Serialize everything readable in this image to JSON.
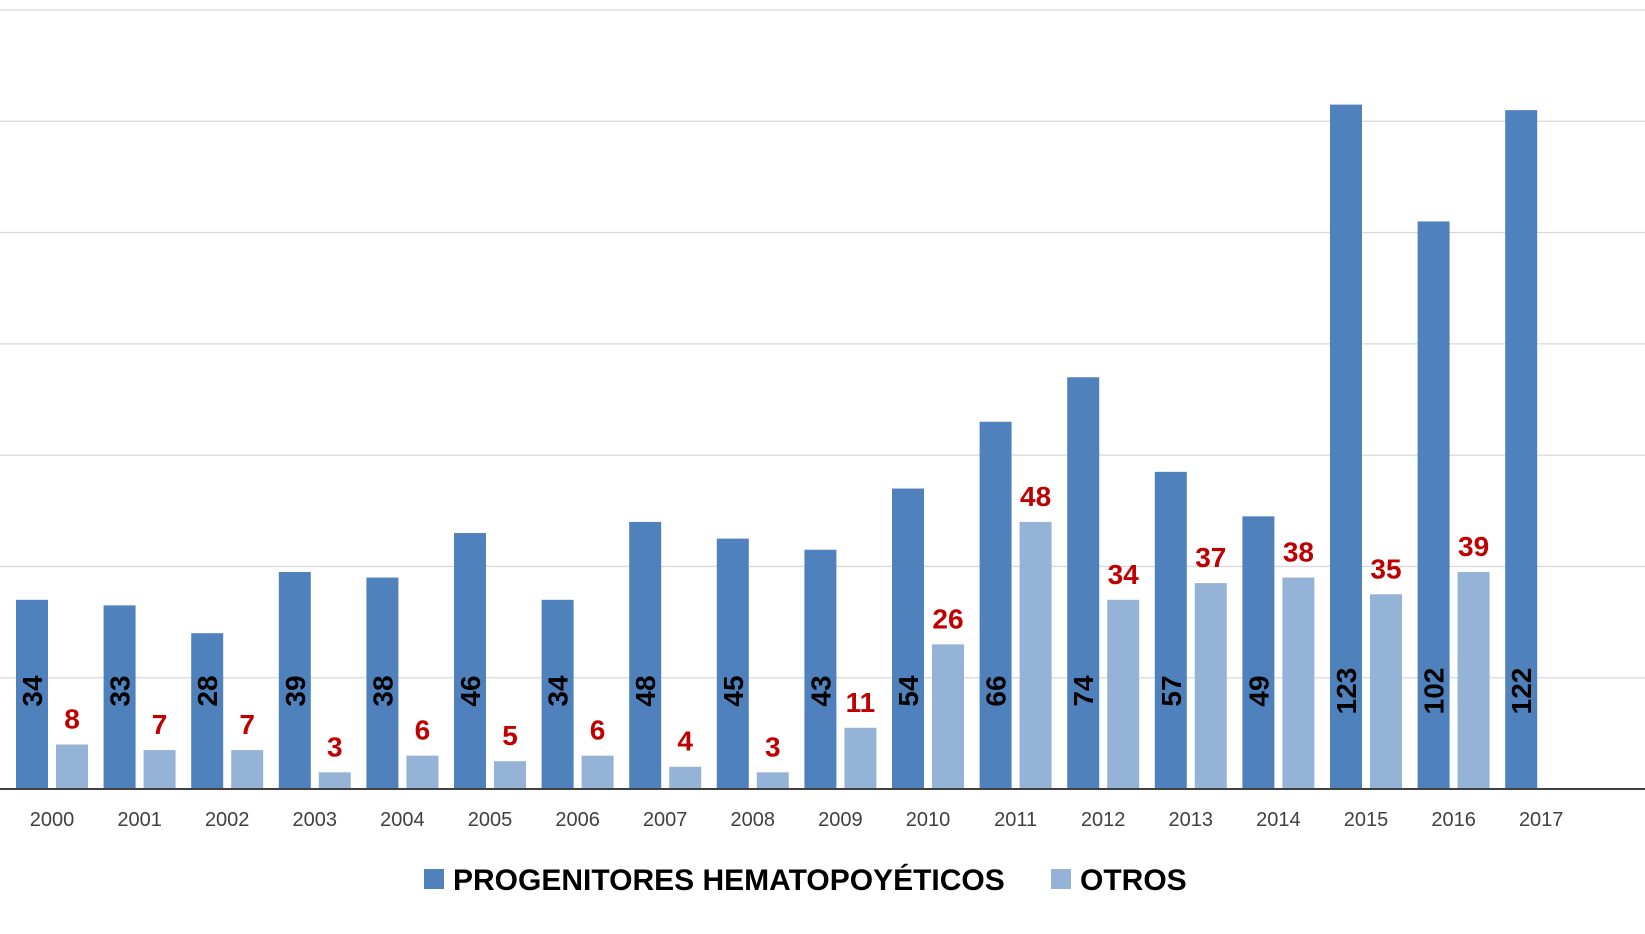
{
  "chart_data": {
    "type": "bar",
    "title": "",
    "xlabel": "",
    "ylabel": "",
    "categories": [
      "2000",
      "2001",
      "2002",
      "2003",
      "2004",
      "2005",
      "2006",
      "2007",
      "2008",
      "2009",
      "2010",
      "2011",
      "2012",
      "2013",
      "2014",
      "2015",
      "2016",
      "2017"
    ],
    "series": [
      {
        "name": "PROGENITORES HEMATOPOYÉTICOS",
        "values": [
          34,
          33,
          28,
          39,
          38,
          46,
          34,
          48,
          45,
          43,
          54,
          66,
          74,
          57,
          49,
          123,
          102,
          122
        ],
        "color": "#4f81bd",
        "label_color": "#000000"
      },
      {
        "name": "OTROS",
        "values": [
          8,
          7,
          7,
          3,
          6,
          5,
          6,
          4,
          3,
          11,
          26,
          48,
          34,
          37,
          38,
          35,
          39,
          null
        ],
        "color": "#95b3d7",
        "label_color": "#c00000"
      }
    ],
    "ylim": [
      0,
      140
    ],
    "grid": true,
    "legend": "bottom-center",
    "gridline_color": "#d9d9d9",
    "axis_color": "#404040"
  }
}
